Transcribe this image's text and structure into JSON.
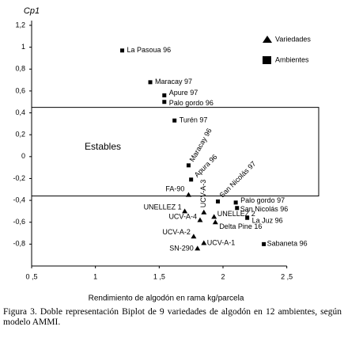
{
  "chart_data": {
    "type": "scatter",
    "y_label": "Cp1",
    "x_label": "Rendimiento de algodón en rama kg/parcela",
    "xlim": [
      0.5,
      2.75
    ],
    "ylim": [
      -1.0,
      1.2
    ],
    "xticks": [
      {
        "value": 0.5,
        "label": "0 ,5"
      },
      1,
      {
        "value": 1.5,
        "label": "1 ,5"
      },
      2,
      {
        "value": 2.5,
        "label": "2 ,5"
      }
    ],
    "yticks": [
      {
        "value": 1.2,
        "label": "1,2"
      },
      1,
      {
        "value": 0.8,
        "label": "0,8"
      },
      {
        "value": 0.6,
        "label": "0,6"
      },
      {
        "value": 0.4,
        "label": "0,4"
      },
      {
        "value": 0.2,
        "label": "0,2"
      },
      0,
      {
        "value": -0.2,
        "label": "-0,2"
      },
      {
        "value": -0.4,
        "label": "-0,4"
      },
      {
        "value": -0.6,
        "label": "-0,6"
      },
      {
        "value": -0.8,
        "label": "-0,8"
      }
    ],
    "series": [
      {
        "name": "Variedades",
        "marker": "triangle",
        "color": "#000000",
        "labels": [
          "FA-90",
          "UNELLEZ 1",
          "UCV-A-3",
          "UCV-A-4",
          "UNELLEZ 2",
          "Delta Pine 16",
          "UCV-A-2",
          "SN-290",
          "UCV-A-1"
        ],
        "x": [
          1.73,
          1.7,
          1.85,
          1.82,
          1.93,
          1.94,
          1.77,
          1.8,
          1.85
        ],
        "values": [
          -0.35,
          -0.5,
          -0.51,
          -0.58,
          -0.55,
          -0.6,
          -0.73,
          -0.84,
          -0.79
        ]
      },
      {
        "name": "Ambientes",
        "marker": "square",
        "color": "#000000",
        "labels": [
          "La Pasoua 96",
          "Maracay 97",
          "Apure 97",
          "Palo gordo 96",
          "Turén 97",
          "Maracay 96",
          "Apura 96",
          "San Nicolás 97",
          "Palo gordo 97",
          "San Nicolás 96",
          "La Juz 96",
          "Sabaneta 96"
        ],
        "x": [
          1.21,
          1.43,
          1.54,
          1.54,
          1.62,
          1.73,
          1.75,
          1.96,
          2.1,
          2.11,
          2.19,
          2.32
        ],
        "values": [
          0.97,
          0.68,
          0.56,
          0.5,
          0.33,
          -0.08,
          -0.21,
          -0.41,
          -0.42,
          -0.47,
          -0.56,
          -0.8
        ]
      }
    ],
    "annotation": {
      "label": "Estables",
      "ylim": [
        -0.36,
        0.45
      ]
    }
  },
  "caption": "Figura 3. Doble representación Biplot de 9 variedades de algodón en 12 ambientes, según modelo AMMI."
}
